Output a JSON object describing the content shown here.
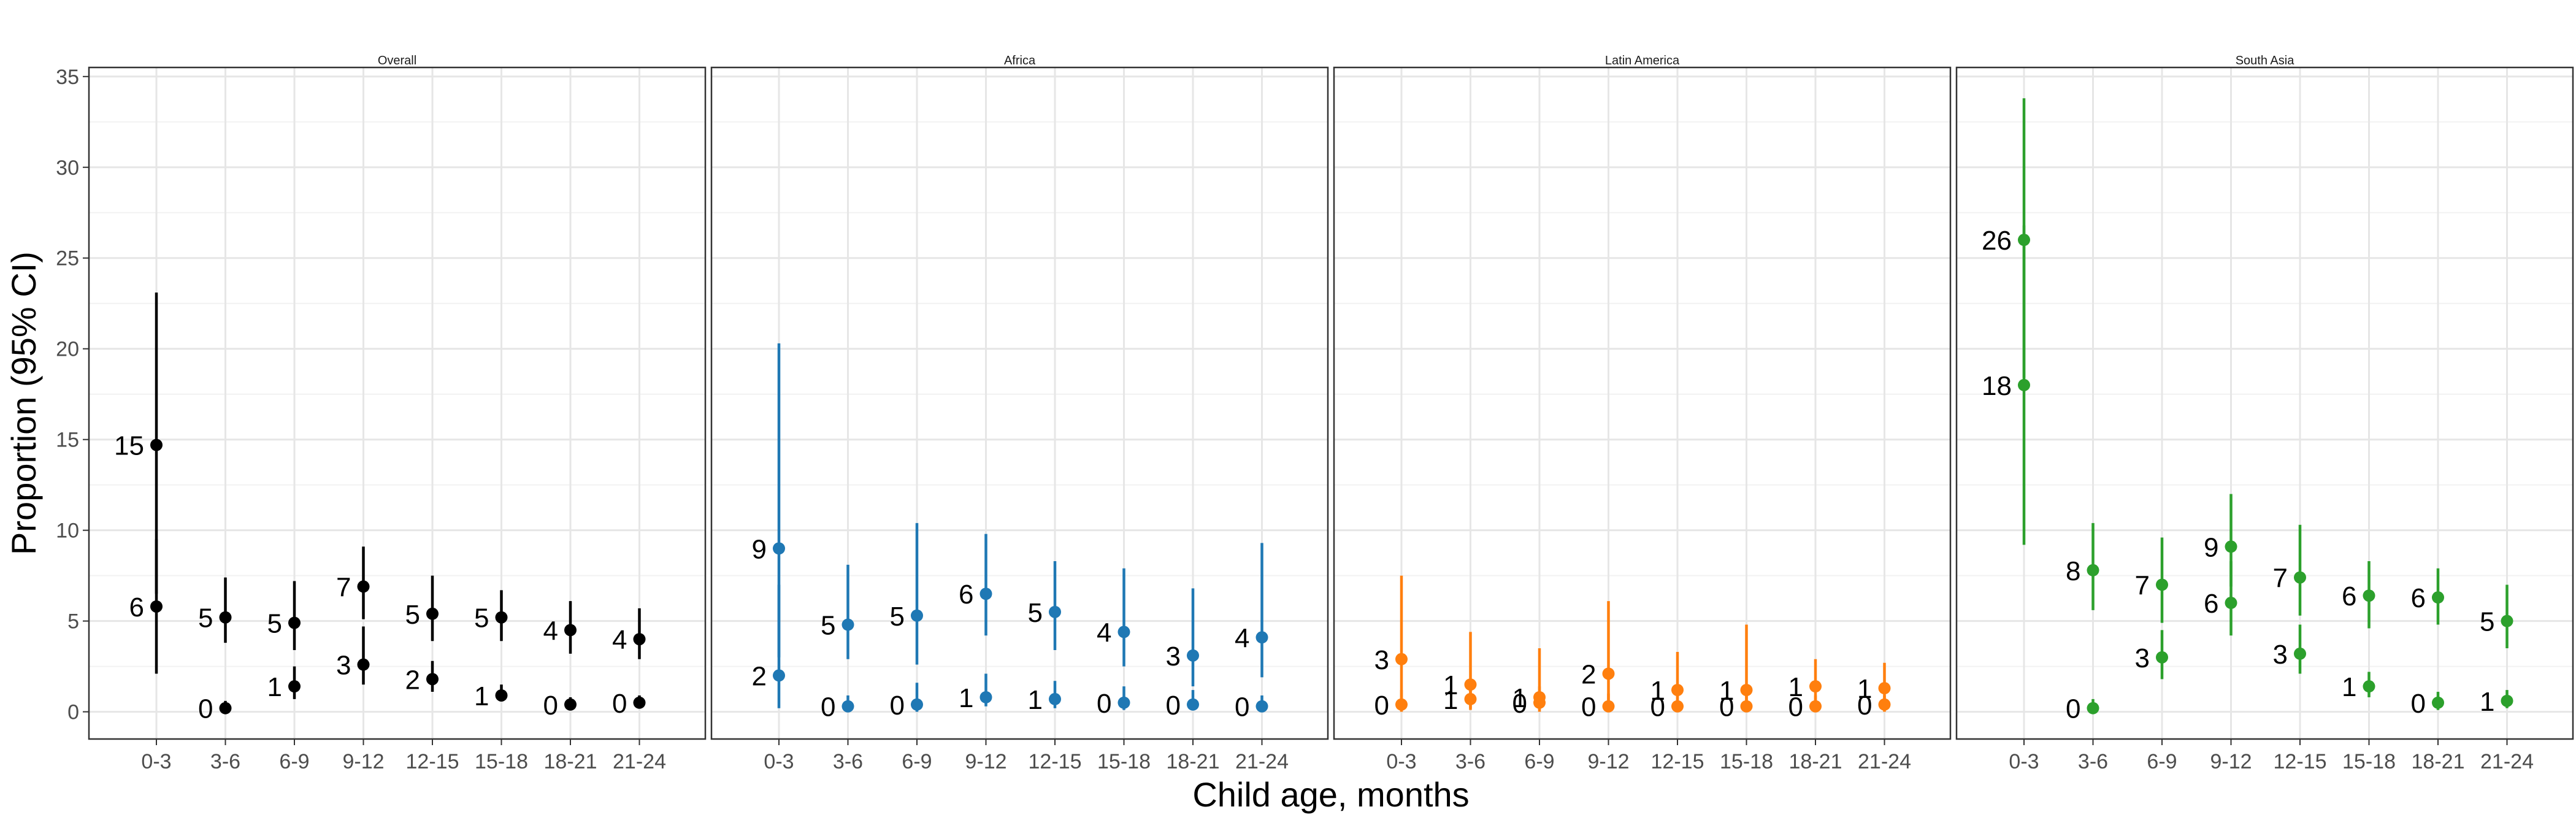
{
  "chart_data": {
    "type": "scatter",
    "ylabel": "Proportion (95% CI)",
    "xlabel": "Child age, months",
    "ylim": [
      -1.5,
      35.5
    ],
    "yticks": [
      0,
      5,
      10,
      15,
      20,
      25,
      30,
      35
    ],
    "categories": [
      "0-3",
      "3-6",
      "6-9",
      "9-12",
      "12-15",
      "15-18",
      "18-21",
      "21-24"
    ],
    "grid": true,
    "legend": "none",
    "panels": [
      {
        "title": "Overall",
        "color": "#000000",
        "series": [
          {
            "values": [
              14.7,
              5.2,
              4.9,
              6.9,
              5.4,
              5.2,
              4.5,
              4.0
            ],
            "lower": [
              6.5,
              3.8,
              3.4,
              5.1,
              3.9,
              3.9,
              3.2,
              2.9
            ],
            "upper": [
              23.1,
              7.4,
              7.2,
              9.1,
              7.5,
              6.7,
              6.1,
              5.7
            ],
            "labels": [
              "15",
              "5",
              "5",
              "7",
              "5",
              "5",
              "4",
              "4"
            ]
          },
          {
            "values": [
              5.8,
              0.2,
              1.4,
              2.6,
              1.8,
              0.9,
              0.4,
              0.5
            ],
            "lower": [
              2.1,
              0.0,
              0.7,
              1.5,
              1.1,
              0.6,
              0.2,
              0.2
            ],
            "upper": [
              9.5,
              0.6,
              2.5,
              4.7,
              2.8,
              1.5,
              0.8,
              0.9
            ],
            "labels": [
              "6",
              "0",
              "1",
              "3",
              "2",
              "1",
              "0",
              "0"
            ]
          }
        ]
      },
      {
        "title": "Africa",
        "color": "#1f78b4",
        "series": [
          {
            "values": [
              9.0,
              4.8,
              5.3,
              6.5,
              5.5,
              4.4,
              3.1,
              4.1
            ],
            "lower": [
              3.0,
              2.9,
              2.6,
              4.2,
              3.4,
              2.5,
              1.4,
              1.9
            ],
            "upper": [
              20.3,
              8.1,
              10.4,
              9.8,
              8.3,
              7.9,
              6.8,
              9.3
            ],
            "labels": [
              "9",
              "5",
              "5",
              "6",
              "5",
              "4",
              "3",
              "4"
            ]
          },
          {
            "values": [
              2.0,
              0.3,
              0.4,
              0.8,
              0.7,
              0.5,
              0.4,
              0.3
            ],
            "lower": [
              0.2,
              0.0,
              0.0,
              0.3,
              0.2,
              0.1,
              0.1,
              0.0
            ],
            "upper": [
              7.0,
              0.9,
              1.6,
              2.1,
              1.7,
              1.4,
              1.2,
              0.9
            ],
            "labels": [
              "2",
              "0",
              "0",
              "1",
              "1",
              "0",
              "0",
              "0"
            ]
          }
        ]
      },
      {
        "title": "Latin America",
        "color": "#ff7f0e",
        "series": [
          {
            "values": [
              2.9,
              1.5,
              0.8,
              2.1,
              1.2,
              1.2,
              1.4,
              1.3
            ],
            "lower": [
              0.5,
              0.2,
              0.1,
              0.4,
              0.2,
              0.2,
              0.3,
              0.3
            ],
            "upper": [
              7.5,
              4.4,
              3.5,
              6.1,
              3.3,
              4.8,
              2.9,
              2.7
            ],
            "labels": [
              "3",
              "1",
              "1",
              "2",
              "1",
              "1",
              "1",
              "1"
            ]
          },
          {
            "values": [
              0.4,
              0.7,
              0.5,
              0.3,
              0.3,
              0.3,
              0.3,
              0.4
            ],
            "lower": [
              0.0,
              0.1,
              0.0,
              0.0,
              0.0,
              0.0,
              0.0,
              0.0
            ],
            "upper": [
              1.2,
              1.6,
              1.4,
              1.0,
              0.9,
              1.1,
              0.9,
              0.9
            ],
            "labels": [
              "0",
              "1",
              "0",
              "0",
              "0",
              "0",
              "0",
              "0"
            ]
          }
        ]
      },
      {
        "title": "South Asia",
        "color": "#2ca02c",
        "series": [
          {
            "values": [
              26.0,
              7.8,
              7.0,
              9.1,
              7.4,
              6.4,
              6.3,
              5.0
            ],
            "lower": [
              18.4,
              5.6,
              4.9,
              6.9,
              5.3,
              4.6,
              4.8,
              3.5
            ],
            "upper": [
              33.8,
              10.4,
              9.6,
              12.0,
              10.3,
              8.3,
              7.9,
              7.0
            ],
            "labels": [
              "26",
              "8",
              "7",
              "9",
              "7",
              "6",
              "6",
              "5"
            ]
          },
          {
            "values": [
              18.0,
              0.2,
              3.0,
              6.0,
              3.2,
              1.4,
              0.5,
              0.6
            ],
            "lower": [
              9.2,
              0.0,
              1.8,
              4.2,
              2.1,
              0.8,
              0.1,
              0.2
            ],
            "upper": [
              26.8,
              0.7,
              4.5,
              8.3,
              4.8,
              2.2,
              1.1,
              1.2
            ],
            "labels": [
              "18",
              "0",
              "3",
              "6",
              "3",
              "1",
              "0",
              "1"
            ]
          }
        ]
      }
    ]
  }
}
